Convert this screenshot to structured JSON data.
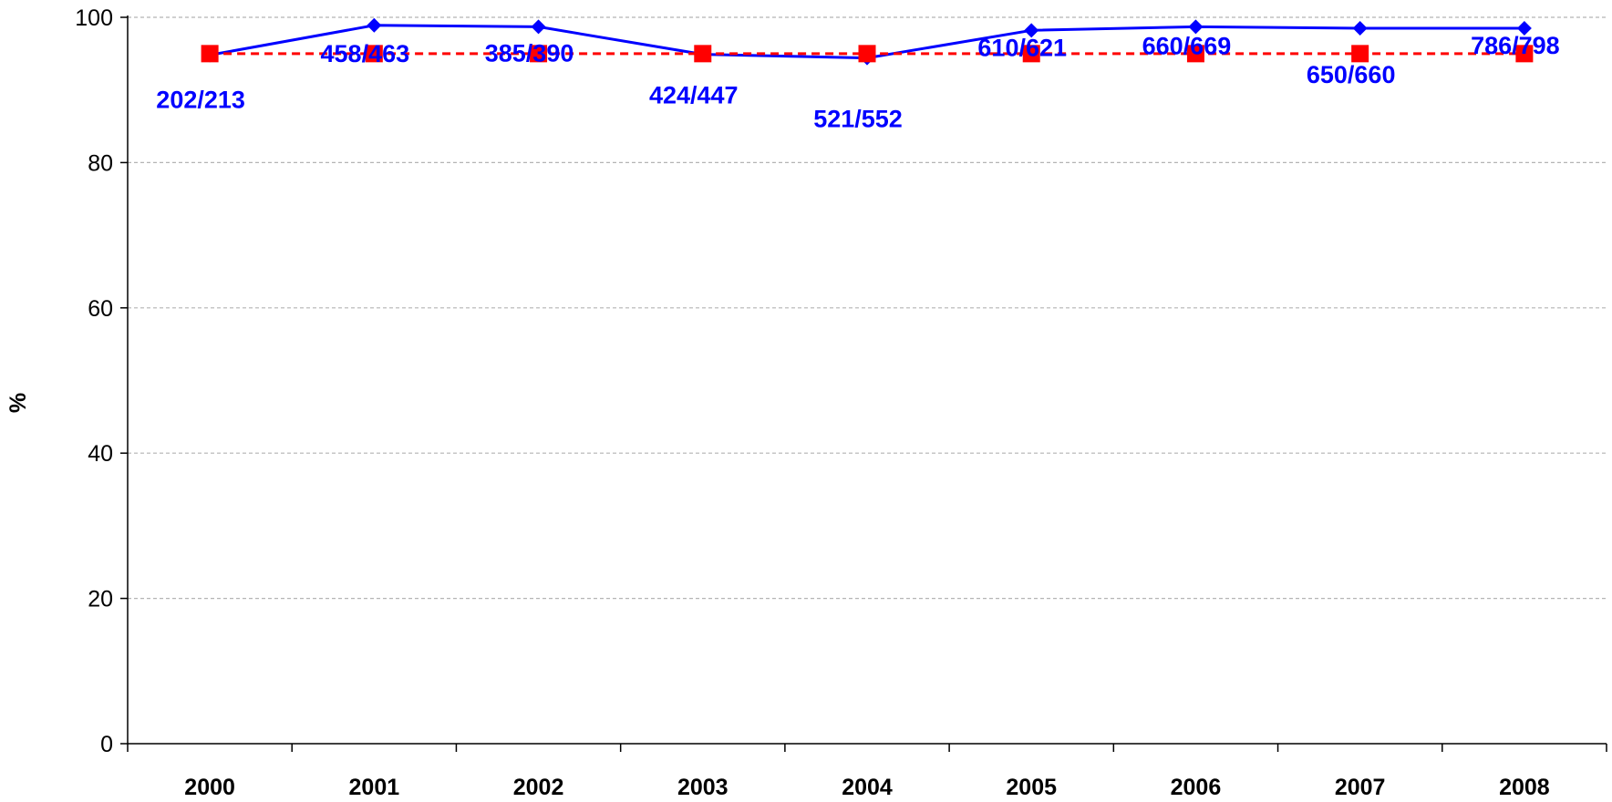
{
  "chart_data": {
    "type": "line",
    "categories": [
      "2000",
      "2001",
      "2002",
      "2003",
      "2004",
      "2005",
      "2006",
      "2007",
      "2008"
    ],
    "series": [
      {
        "values": [
          94.8,
          98.9,
          98.7,
          94.9,
          94.4,
          98.2,
          98.7,
          98.5,
          98.5
        ],
        "data_labels": [
          "202/213",
          "458/463",
          "385/390",
          "424/447",
          "521/552",
          "610/621",
          "660/669",
          "650/660",
          "786/798"
        ],
        "color": "#0000FF",
        "line_style": "solid",
        "marker": "diamond"
      },
      {
        "values": [
          95,
          95,
          95,
          95,
          95,
          95,
          95,
          95,
          95
        ],
        "color": "#FF0000",
        "line_style": "dashed",
        "marker": "square"
      }
    ],
    "ylabel": "%",
    "xlabel": "",
    "title": "",
    "ylim": [
      0,
      100
    ],
    "yticks": [
      0,
      20,
      40,
      60,
      80,
      100
    ],
    "grid": "horizontal dashed",
    "legend": "none"
  }
}
